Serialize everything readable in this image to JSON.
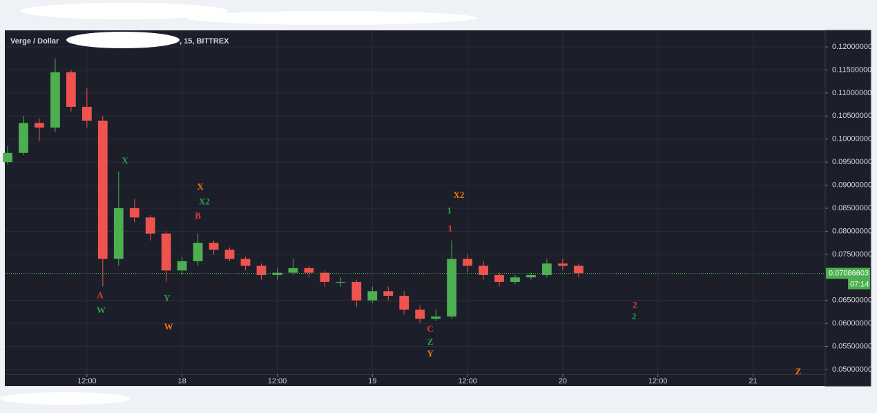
{
  "chart_data": {
    "type": "candlestick",
    "title": "Verge / Dollar",
    "title_suffix": ", 15, BITTREX",
    "x": [
      2,
      4,
      6,
      8,
      10,
      12,
      14,
      16,
      18,
      20,
      22,
      24,
      26,
      28,
      30,
      32,
      34,
      36,
      38,
      40,
      42,
      44,
      46,
      48,
      50,
      52,
      54,
      56,
      58,
      60,
      62,
      64,
      66,
      68,
      70,
      72,
      74
    ],
    "open": [
      0.095,
      0.097,
      0.1035,
      0.1025,
      0.1145,
      0.107,
      0.104,
      0.074,
      0.085,
      0.083,
      0.0795,
      0.0715,
      0.0735,
      0.0775,
      0.076,
      0.074,
      0.0725,
      0.0705,
      0.071,
      0.072,
      0.071,
      0.069,
      0.069,
      0.065,
      0.067,
      0.066,
      0.063,
      0.061,
      0.0615,
      0.074,
      0.0725,
      0.0705,
      0.069,
      0.07,
      0.0705,
      0.073,
      0.0725
    ],
    "high": [
      0.0985,
      0.105,
      0.1045,
      0.1175,
      0.115,
      0.111,
      0.105,
      0.093,
      0.087,
      0.0835,
      0.08,
      0.0745,
      0.0795,
      0.078,
      0.0765,
      0.0745,
      0.073,
      0.072,
      0.074,
      0.0725,
      0.0715,
      0.07,
      0.0695,
      0.068,
      0.068,
      0.067,
      0.064,
      0.063,
      0.078,
      0.075,
      0.0735,
      0.071,
      0.0705,
      0.071,
      0.074,
      0.074,
      0.073
    ],
    "low": [
      0.0945,
      0.0965,
      0.0995,
      0.1015,
      0.106,
      0.1025,
      0.068,
      0.0725,
      0.082,
      0.078,
      0.069,
      0.0705,
      0.0725,
      0.075,
      0.0735,
      0.0715,
      0.0695,
      0.0695,
      0.0705,
      0.07,
      0.068,
      0.068,
      0.0635,
      0.0645,
      0.065,
      0.062,
      0.06,
      0.0605,
      0.061,
      0.071,
      0.0695,
      0.068,
      0.0685,
      0.0695,
      0.07,
      0.0715,
      0.07
    ],
    "close": [
      0.097,
      0.1035,
      0.1025,
      0.1145,
      0.107,
      0.104,
      0.074,
      0.085,
      0.083,
      0.0795,
      0.0715,
      0.0735,
      0.0775,
      0.076,
      0.074,
      0.0725,
      0.0705,
      0.071,
      0.072,
      0.071,
      0.069,
      0.069,
      0.065,
      0.067,
      0.066,
      0.063,
      0.061,
      0.0615,
      0.074,
      0.0725,
      0.0705,
      0.069,
      0.07,
      0.0705,
      0.073,
      0.0725,
      0.0709
    ],
    "up_color": "#4caf50",
    "down_color": "#ef5350",
    "xlim": [
      1.65,
      105.1
    ],
    "xticks": [
      {
        "value": 12,
        "label": "12:00"
      },
      {
        "value": 24,
        "label": "18"
      },
      {
        "value": 36,
        "label": "12:00"
      },
      {
        "value": 48,
        "label": "19"
      },
      {
        "value": 60,
        "label": "12:00"
      },
      {
        "value": 72,
        "label": "20"
      },
      {
        "value": 84,
        "label": "12:00"
      },
      {
        "value": 96,
        "label": "21"
      }
    ],
    "ylim": [
      0.04895,
      0.12359
    ],
    "yticks": [
      {
        "value": 0.05,
        "label": "0.05000000"
      },
      {
        "value": 0.055,
        "label": "0.05500000"
      },
      {
        "value": 0.06,
        "label": "0.06000000"
      },
      {
        "value": 0.065,
        "label": "0.06500000"
      },
      {
        "value": 0.075,
        "label": "0.07500000"
      },
      {
        "value": 0.08,
        "label": "0.08000000"
      },
      {
        "value": 0.085,
        "label": "0.08500000"
      },
      {
        "value": 0.09,
        "label": "0.09000000"
      },
      {
        "value": 0.095,
        "label": "0.09500000"
      },
      {
        "value": 0.1,
        "label": "0.10000000"
      },
      {
        "value": 0.105,
        "label": "0.10500000"
      },
      {
        "value": 0.11,
        "label": "0.11000000"
      },
      {
        "value": 0.115,
        "label": "0.11500000"
      },
      {
        "value": 0.12,
        "label": "0.12000000"
      }
    ],
    "grid": true,
    "last_price": 0.07086603,
    "countdown": "07:14",
    "annotations": [
      {
        "text": "A",
        "x": 13.65,
        "y": 0.0659,
        "color": "#e53935"
      },
      {
        "text": "W",
        "x": 13.8,
        "y": 0.0627,
        "color": "#2e9e44"
      },
      {
        "text": "X",
        "x": 16.8,
        "y": 0.0952,
        "color": "#2e9e44"
      },
      {
        "text": "Y",
        "x": 22.1,
        "y": 0.0653,
        "color": "#2e9e44"
      },
      {
        "text": "W",
        "x": 22.3,
        "y": 0.0591,
        "color": "#f57c00"
      },
      {
        "text": "X",
        "x": 26.3,
        "y": 0.0895,
        "color": "#f57c00"
      },
      {
        "text": "X2",
        "x": 26.8,
        "y": 0.0863,
        "color": "#2e9e44"
      },
      {
        "text": "B",
        "x": 26.0,
        "y": 0.0832,
        "color": "#e53935"
      },
      {
        "text": "X2",
        "x": 58.9,
        "y": 0.0877,
        "color": "#f57c00"
      },
      {
        "text": "1",
        "x": 57.7,
        "y": 0.0843,
        "color": "#2e9e44"
      },
      {
        "text": "1",
        "x": 57.8,
        "y": 0.0804,
        "color": "#e53935"
      },
      {
        "text": "C",
        "x": 55.3,
        "y": 0.0587,
        "color": "#e53935"
      },
      {
        "text": "Z",
        "x": 55.3,
        "y": 0.0558,
        "color": "#2e9e44"
      },
      {
        "text": "Y",
        "x": 55.3,
        "y": 0.0533,
        "color": "#f57c00"
      },
      {
        "text": "2",
        "x": 81.1,
        "y": 0.0638,
        "color": "#e53935"
      },
      {
        "text": "2",
        "x": 81.0,
        "y": 0.0614,
        "color": "#2e9e44"
      },
      {
        "text": "Z",
        "x": 101.7,
        "y": 0.0494,
        "color": "#f57c00"
      }
    ]
  }
}
